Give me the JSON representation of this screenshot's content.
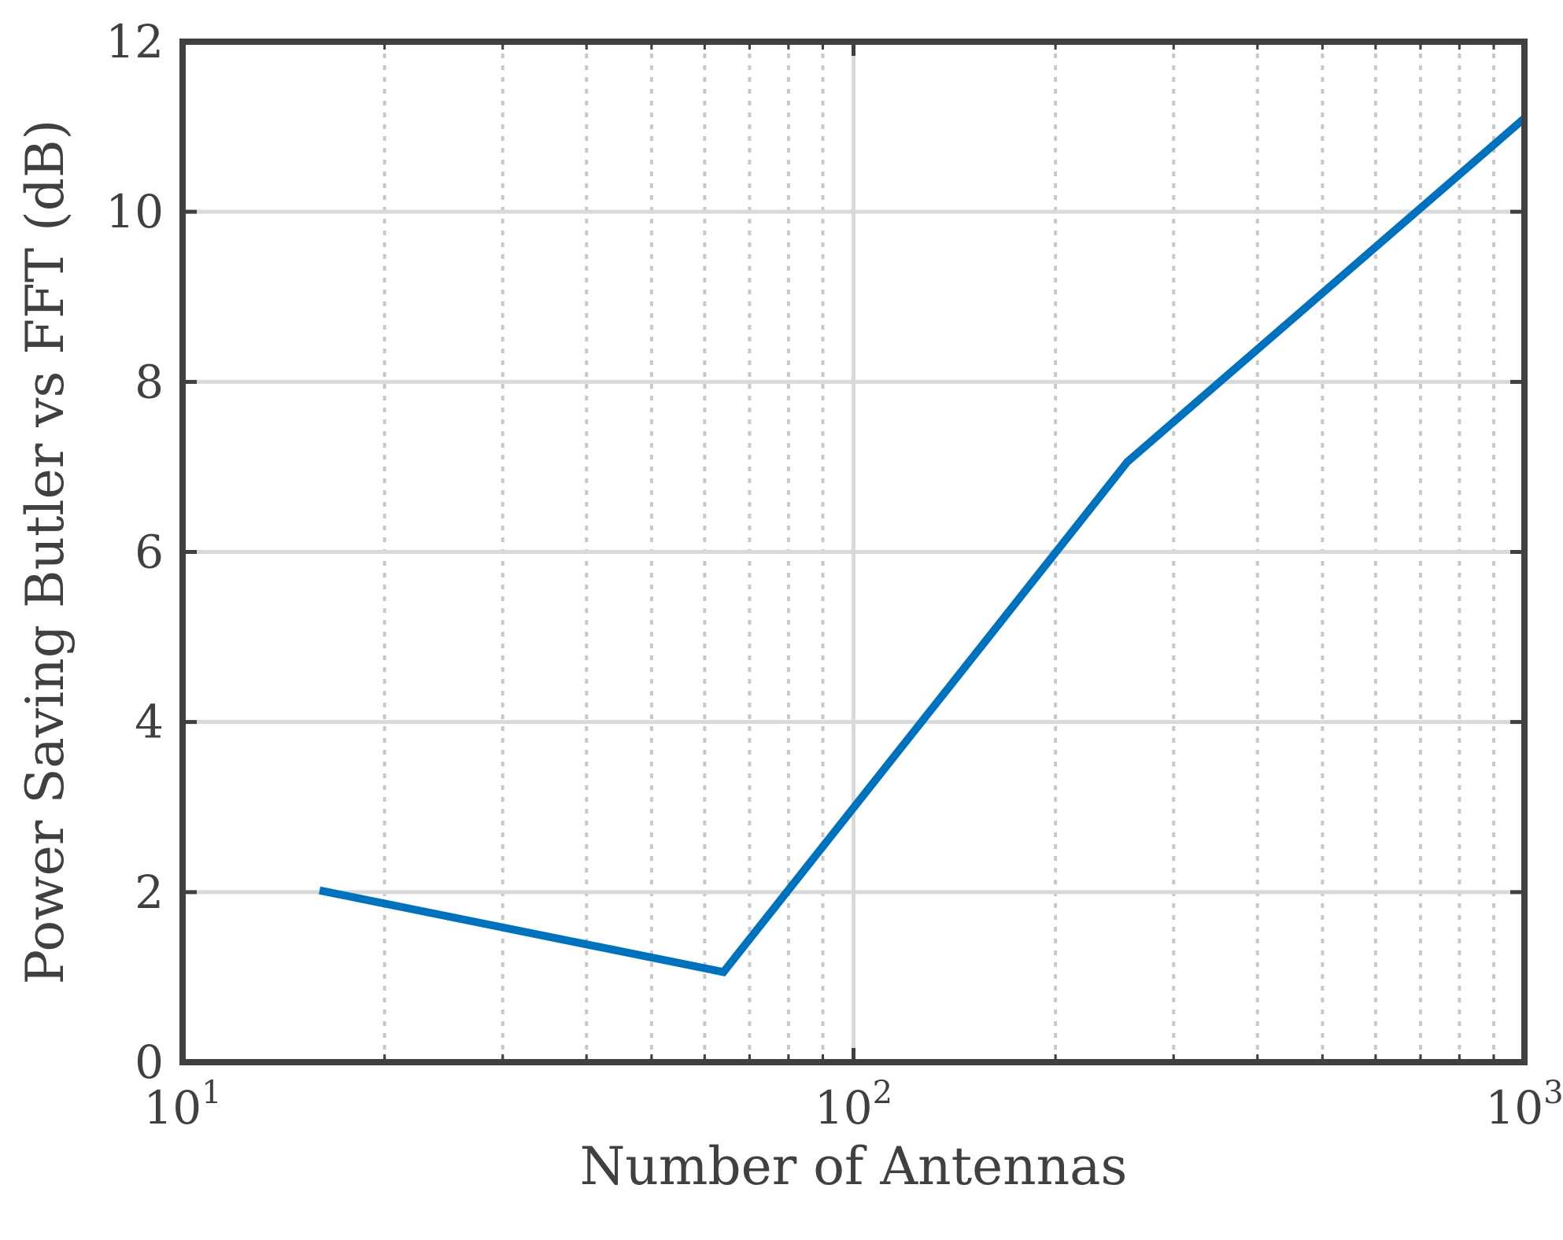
{
  "chart_data": {
    "type": "line",
    "xlabel": "Number of Antennas",
    "ylabel": "Power Saving Butler vs FFT (dB)",
    "x_scale": "log",
    "xlim": [
      10,
      1000
    ],
    "ylim": [
      0,
      12
    ],
    "x_ticks": [
      {
        "value": 10,
        "base": "10",
        "exp": "1"
      },
      {
        "value": 100,
        "base": "10",
        "exp": "2"
      },
      {
        "value": 1000,
        "base": "10",
        "exp": "3"
      }
    ],
    "y_ticks": [
      0,
      2,
      4,
      6,
      8,
      10,
      12
    ],
    "grid": true,
    "minor_grid": true,
    "series": [
      {
        "color": "#0072bd",
        "x": [
          16,
          64,
          256,
          1024
        ],
        "y": [
          2.02,
          1.06,
          7.06,
          11.1
        ]
      }
    ]
  }
}
